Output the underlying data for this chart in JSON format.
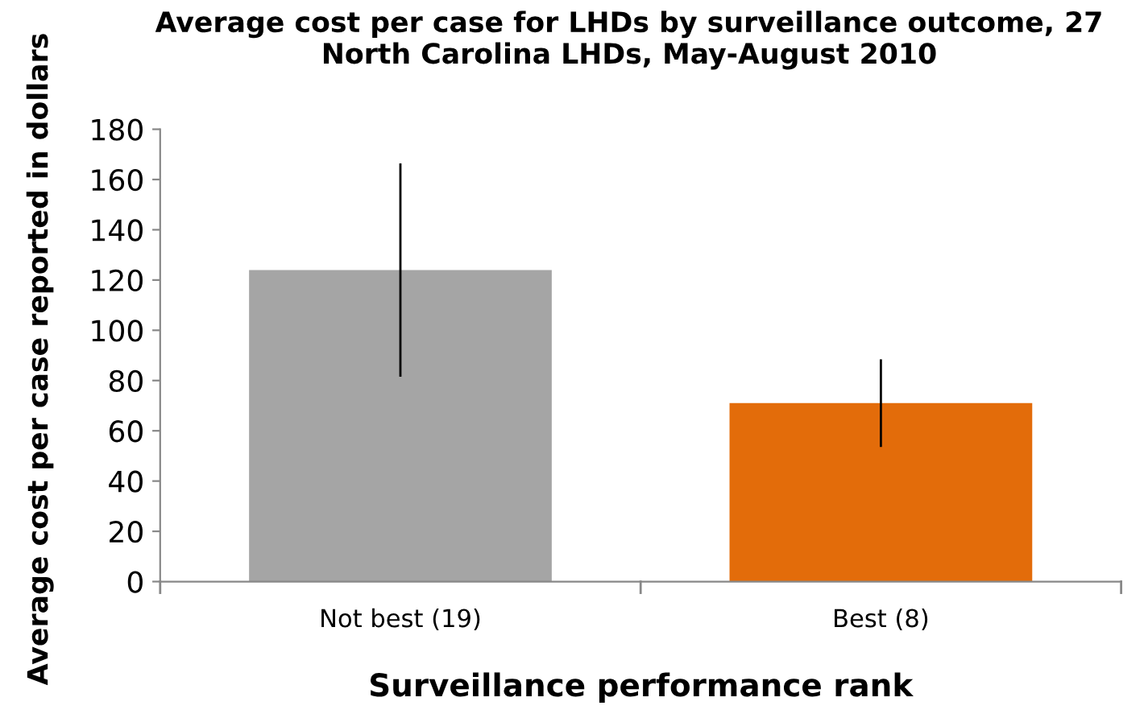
{
  "chart_data": {
    "type": "bar",
    "title": "Average cost per case for LHDs by surveillance outcome, 27 North Carolina LHDs, May-August 2010",
    "xlabel": "Surveillance performance rank",
    "ylabel": "Average cost per case reported in dollars",
    "categories": [
      "Not best (19)",
      "Best (8)"
    ],
    "values": [
      124,
      71
    ],
    "colors": [
      "#a5a5a5",
      "#e36c0a"
    ],
    "errors": [
      [
        82,
        166
      ],
      [
        54,
        88
      ]
    ],
    "ylim": [
      0,
      180
    ],
    "yticks": [
      0,
      20,
      40,
      60,
      80,
      100,
      120,
      140,
      160,
      180
    ],
    "grid": false,
    "legend": false
  }
}
